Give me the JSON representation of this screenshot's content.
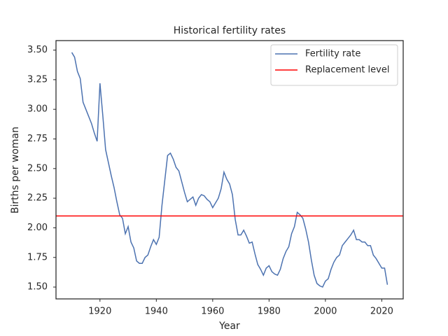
{
  "chart_data": {
    "type": "line",
    "title": "Historical fertility rates",
    "xlabel": "Year",
    "ylabel": "Births per woman",
    "x": [
      1910,
      1911,
      1912,
      1913,
      1914,
      1915,
      1916,
      1917,
      1918,
      1919,
      1920,
      1921,
      1922,
      1923,
      1924,
      1925,
      1926,
      1927,
      1928,
      1929,
      1930,
      1931,
      1932,
      1933,
      1934,
      1935,
      1936,
      1937,
      1938,
      1939,
      1940,
      1941,
      1942,
      1943,
      1944,
      1945,
      1946,
      1947,
      1948,
      1949,
      1950,
      1951,
      1952,
      1953,
      1954,
      1955,
      1956,
      1957,
      1958,
      1959,
      1960,
      1961,
      1962,
      1963,
      1964,
      1965,
      1966,
      1967,
      1968,
      1969,
      1970,
      1971,
      1972,
      1973,
      1974,
      1975,
      1976,
      1977,
      1978,
      1979,
      1980,
      1981,
      1982,
      1983,
      1984,
      1985,
      1986,
      1987,
      1988,
      1989,
      1990,
      1991,
      1992,
      1993,
      1994,
      1995,
      1996,
      1997,
      1998,
      1999,
      2000,
      2001,
      2002,
      2003,
      2004,
      2005,
      2006,
      2007,
      2008,
      2009,
      2010,
      2011,
      2012,
      2013,
      2014,
      2015,
      2016,
      2017,
      2018,
      2019,
      2020,
      2021,
      2022
    ],
    "series": [
      {
        "name": "Fertility rate",
        "color": "#4c72b0",
        "values": [
          3.48,
          3.44,
          3.32,
          3.26,
          3.06,
          3.0,
          2.94,
          2.88,
          2.8,
          2.73,
          3.22,
          2.95,
          2.66,
          2.55,
          2.44,
          2.34,
          2.22,
          2.11,
          2.08,
          1.95,
          2.01,
          1.88,
          1.83,
          1.72,
          1.7,
          1.7,
          1.75,
          1.77,
          1.84,
          1.9,
          1.86,
          1.92,
          2.19,
          2.4,
          2.61,
          2.63,
          2.58,
          2.51,
          2.48,
          2.39,
          2.3,
          2.22,
          2.24,
          2.26,
          2.19,
          2.25,
          2.28,
          2.27,
          2.24,
          2.22,
          2.17,
          2.21,
          2.25,
          2.33,
          2.47,
          2.41,
          2.37,
          2.28,
          2.07,
          1.94,
          1.94,
          1.98,
          1.93,
          1.87,
          1.88,
          1.78,
          1.69,
          1.65,
          1.6,
          1.66,
          1.68,
          1.63,
          1.61,
          1.6,
          1.65,
          1.74,
          1.8,
          1.84,
          1.95,
          2.01,
          2.13,
          2.11,
          2.08,
          1.99,
          1.88,
          1.73,
          1.6,
          1.53,
          1.51,
          1.5,
          1.55,
          1.57,
          1.65,
          1.71,
          1.75,
          1.77,
          1.85,
          1.88,
          1.91,
          1.94,
          1.98,
          1.9,
          1.9,
          1.88,
          1.88,
          1.85,
          1.85,
          1.77,
          1.74,
          1.7,
          1.66,
          1.66,
          1.52
        ]
      }
    ],
    "reference_lines": [
      {
        "name": "Replacement level",
        "color": "#ff0000",
        "value": 2.1
      }
    ],
    "xlim": [
      1904.4,
      2027.6
    ],
    "ylim": [
      1.4,
      3.58
    ],
    "xticks": [
      1920,
      1940,
      1960,
      1980,
      2000,
      2020
    ],
    "yticks": [
      {
        "value": 1.5,
        "label": "1.50"
      },
      {
        "value": 1.75,
        "label": "1.75"
      },
      {
        "value": 2.0,
        "label": "2.00"
      },
      {
        "value": 2.25,
        "label": "2.25"
      },
      {
        "value": 2.5,
        "label": "2.50"
      },
      {
        "value": 2.75,
        "label": "2.75"
      },
      {
        "value": 3.0,
        "label": "3.00"
      },
      {
        "value": 3.25,
        "label": "3.25"
      },
      {
        "value": 3.5,
        "label": "3.50"
      }
    ],
    "legend": "upper right"
  }
}
